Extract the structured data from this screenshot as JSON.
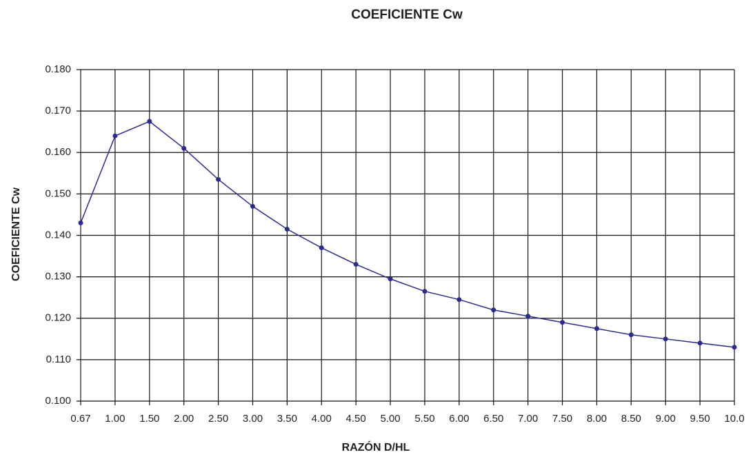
{
  "chart_data": {
    "type": "line",
    "title": "COEFICIENTE Cw",
    "xlabel": "RAZÓN D/HL",
    "ylabel": "COEFICIENTE Cw",
    "categories": [
      "0.67",
      "1.00",
      "1.50",
      "2.00",
      "2.50",
      "3.00",
      "3.50",
      "4.00",
      "4.50",
      "5.00",
      "5.50",
      "6.00",
      "6.50",
      "7.00",
      "7.50",
      "8.00",
      "8.50",
      "9.00",
      "9.50",
      "10.0"
    ],
    "series": [
      {
        "name": "Cw",
        "color": "#2b2b8f",
        "values": [
          0.143,
          0.164,
          0.1675,
          0.161,
          0.1535,
          0.147,
          0.1415,
          0.137,
          0.133,
          0.1295,
          0.1265,
          0.1245,
          0.122,
          0.1205,
          0.119,
          0.1175,
          0.116,
          0.115,
          0.114,
          0.113
        ]
      }
    ],
    "ylim": [
      0.1,
      0.18
    ],
    "yticks": [
      {
        "value": 0.1,
        "label": "0.100"
      },
      {
        "value": 0.11,
        "label": "0.110"
      },
      {
        "value": 0.12,
        "label": "0.120"
      },
      {
        "value": 0.13,
        "label": "0.130"
      },
      {
        "value": 0.14,
        "label": "0.140"
      },
      {
        "value": 0.15,
        "label": "0.150"
      },
      {
        "value": 0.16,
        "label": "0.160"
      },
      {
        "value": 0.17,
        "label": "0.170"
      },
      {
        "value": 0.18,
        "label": "0.180"
      }
    ],
    "grid": true
  }
}
